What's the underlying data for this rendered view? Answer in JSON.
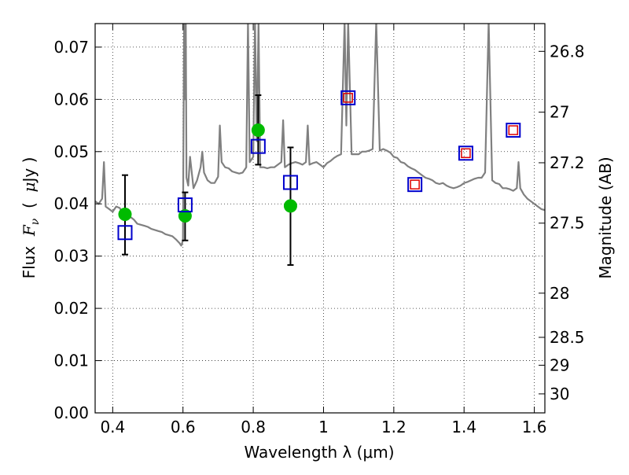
{
  "chart_data": {
    "type": "scatter",
    "xlabel": "Wavelength  λ (μm)",
    "ylabel": "Flux  F_ν  ( μJy )",
    "ylabel_parts": {
      "prefix": "Flux  ",
      "sym": "F",
      "sub": "ν",
      "mid": "  (  ",
      "mu": "μ",
      "suffix": "Jy )"
    },
    "ylabel_right": "Magnitude (AB)",
    "xlim": [
      0.35,
      1.63
    ],
    "ylim": [
      0.0,
      0.0745
    ],
    "grid": true,
    "x_ticks": [
      {
        "value": 0.4,
        "label": "0.4"
      },
      {
        "value": 0.6,
        "label": "0.6"
      },
      {
        "value": 0.8,
        "label": "0.8"
      },
      {
        "value": 1.0,
        "label": "1"
      },
      {
        "value": 1.2,
        "label": "1.2"
      },
      {
        "value": 1.4,
        "label": "1.4"
      },
      {
        "value": 1.6,
        "label": "1.6"
      }
    ],
    "y_ticks": [
      {
        "value": 0.0,
        "label": "0.00"
      },
      {
        "value": 0.01,
        "label": "0.01"
      },
      {
        "value": 0.02,
        "label": "0.02"
      },
      {
        "value": 0.03,
        "label": "0.03"
      },
      {
        "value": 0.04,
        "label": "0.04"
      },
      {
        "value": 0.05,
        "label": "0.05"
      },
      {
        "value": 0.06,
        "label": "0.06"
      },
      {
        "value": 0.07,
        "label": "0.07"
      }
    ],
    "right_ticks": [
      {
        "mag": 26.8,
        "label": "26.8"
      },
      {
        "mag": 27.0,
        "label": "27"
      },
      {
        "mag": 27.2,
        "label": "27.2"
      },
      {
        "mag": 27.5,
        "label": "27.5"
      },
      {
        "mag": 28.0,
        "label": "28"
      },
      {
        "mag": 28.5,
        "label": "28.5"
      },
      {
        "mag": 29.0,
        "label": "29"
      },
      {
        "mag": 30.0,
        "label": "30"
      }
    ],
    "series": [
      {
        "kind": "line",
        "color": "#808080",
        "x": [
          0.35,
          0.36,
          0.37,
          0.375,
          0.38,
          0.39,
          0.4,
          0.41,
          0.42,
          0.43,
          0.44,
          0.45,
          0.46,
          0.47,
          0.48,
          0.49,
          0.5,
          0.51,
          0.52,
          0.53,
          0.54,
          0.55,
          0.56,
          0.57,
          0.58,
          0.59,
          0.595,
          0.6,
          0.603,
          0.605,
          0.608,
          0.61,
          0.615,
          0.62,
          0.63,
          0.64,
          0.65,
          0.655,
          0.66,
          0.67,
          0.68,
          0.69,
          0.7,
          0.705,
          0.71,
          0.72,
          0.73,
          0.74,
          0.75,
          0.76,
          0.77,
          0.78,
          0.785,
          0.79,
          0.8,
          0.805,
          0.81,
          0.815,
          0.82,
          0.83,
          0.84,
          0.85,
          0.86,
          0.87,
          0.88,
          0.885,
          0.89,
          0.9,
          0.91,
          0.92,
          0.93,
          0.94,
          0.95,
          0.955,
          0.96,
          0.97,
          0.98,
          0.99,
          1.0,
          1.01,
          1.02,
          1.03,
          1.04,
          1.05,
          1.06,
          1.065,
          1.07,
          1.08,
          1.09,
          1.1,
          1.11,
          1.12,
          1.13,
          1.14,
          1.15,
          1.16,
          1.17,
          1.18,
          1.19,
          1.2,
          1.21,
          1.22,
          1.23,
          1.24,
          1.25,
          1.26,
          1.27,
          1.28,
          1.29,
          1.3,
          1.31,
          1.32,
          1.33,
          1.34,
          1.35,
          1.36,
          1.37,
          1.38,
          1.39,
          1.4,
          1.41,
          1.42,
          1.43,
          1.44,
          1.45,
          1.46,
          1.47,
          1.48,
          1.49,
          1.5,
          1.51,
          1.52,
          1.53,
          1.54,
          1.55,
          1.555,
          1.56,
          1.57,
          1.58,
          1.59,
          1.6,
          1.61,
          1.62,
          1.63
        ],
        "y": [
          0.0405,
          0.04,
          0.041,
          0.048,
          0.0395,
          0.039,
          0.0385,
          0.0395,
          0.0392,
          0.038,
          0.0378,
          0.0375,
          0.037,
          0.0362,
          0.036,
          0.0358,
          0.0356,
          0.0352,
          0.035,
          0.0348,
          0.0346,
          0.0342,
          0.034,
          0.0338,
          0.0332,
          0.0325,
          0.032,
          0.033,
          0.075,
          0.06,
          0.075,
          0.045,
          0.0435,
          0.049,
          0.043,
          0.0445,
          0.047,
          0.05,
          0.046,
          0.0445,
          0.044,
          0.044,
          0.0452,
          0.055,
          0.048,
          0.047,
          0.0468,
          0.0462,
          0.046,
          0.0458,
          0.046,
          0.047,
          0.075,
          0.048,
          0.049,
          0.075,
          0.052,
          0.075,
          0.047,
          0.047,
          0.0468,
          0.047,
          0.047,
          0.0475,
          0.048,
          0.056,
          0.047,
          0.0475,
          0.0478,
          0.048,
          0.0478,
          0.0475,
          0.048,
          0.055,
          0.0475,
          0.0478,
          0.048,
          0.0475,
          0.047,
          0.0478,
          0.0482,
          0.0488,
          0.0492,
          0.0495,
          0.075,
          0.055,
          0.075,
          0.0495,
          0.0495,
          0.0495,
          0.05,
          0.05,
          0.0502,
          0.0505,
          0.075,
          0.0502,
          0.0505,
          0.0502,
          0.0498,
          0.049,
          0.0488,
          0.048,
          0.0478,
          0.0472,
          0.0468,
          0.0465,
          0.046,
          0.0455,
          0.045,
          0.0448,
          0.0445,
          0.044,
          0.0438,
          0.044,
          0.0435,
          0.0432,
          0.043,
          0.0432,
          0.0435,
          0.044,
          0.0442,
          0.0445,
          0.0448,
          0.045,
          0.045,
          0.046,
          0.075,
          0.0445,
          0.044,
          0.0438,
          0.043,
          0.043,
          0.0428,
          0.0425,
          0.043,
          0.048,
          0.043,
          0.0418,
          0.041,
          0.0405,
          0.04,
          0.0395,
          0.039,
          0.0388
        ]
      },
      {
        "kind": "points",
        "marker": "circle",
        "color": "#00bb00",
        "points": [
          {
            "x": 0.435,
            "y": 0.038,
            "err_lo": 0.0303,
            "err_hi": 0.0455
          },
          {
            "x": 0.606,
            "y": 0.0377,
            "err_lo": 0.033,
            "err_hi": 0.0422
          },
          {
            "x": 0.814,
            "y": 0.0541,
            "err_lo": 0.0475,
            "err_hi": 0.0608
          },
          {
            "x": 0.906,
            "y": 0.0396,
            "err_lo": 0.0283,
            "err_hi": 0.0508
          }
        ]
      },
      {
        "kind": "points",
        "marker": "square",
        "color": "#0000cc",
        "points": [
          {
            "x": 0.435,
            "y": 0.0345
          },
          {
            "x": 0.606,
            "y": 0.0398
          },
          {
            "x": 0.814,
            "y": 0.051
          },
          {
            "x": 0.906,
            "y": 0.0441
          },
          {
            "x": 1.07,
            "y": 0.0603
          },
          {
            "x": 1.26,
            "y": 0.0437
          },
          {
            "x": 1.405,
            "y": 0.0497
          },
          {
            "x": 1.54,
            "y": 0.0541
          }
        ]
      },
      {
        "kind": "points",
        "marker": "square",
        "color": "#dd0000",
        "points": [
          {
            "x": 1.07,
            "y": 0.0603
          },
          {
            "x": 1.26,
            "y": 0.0437
          },
          {
            "x": 1.405,
            "y": 0.0497
          },
          {
            "x": 1.54,
            "y": 0.0541
          }
        ]
      }
    ]
  }
}
